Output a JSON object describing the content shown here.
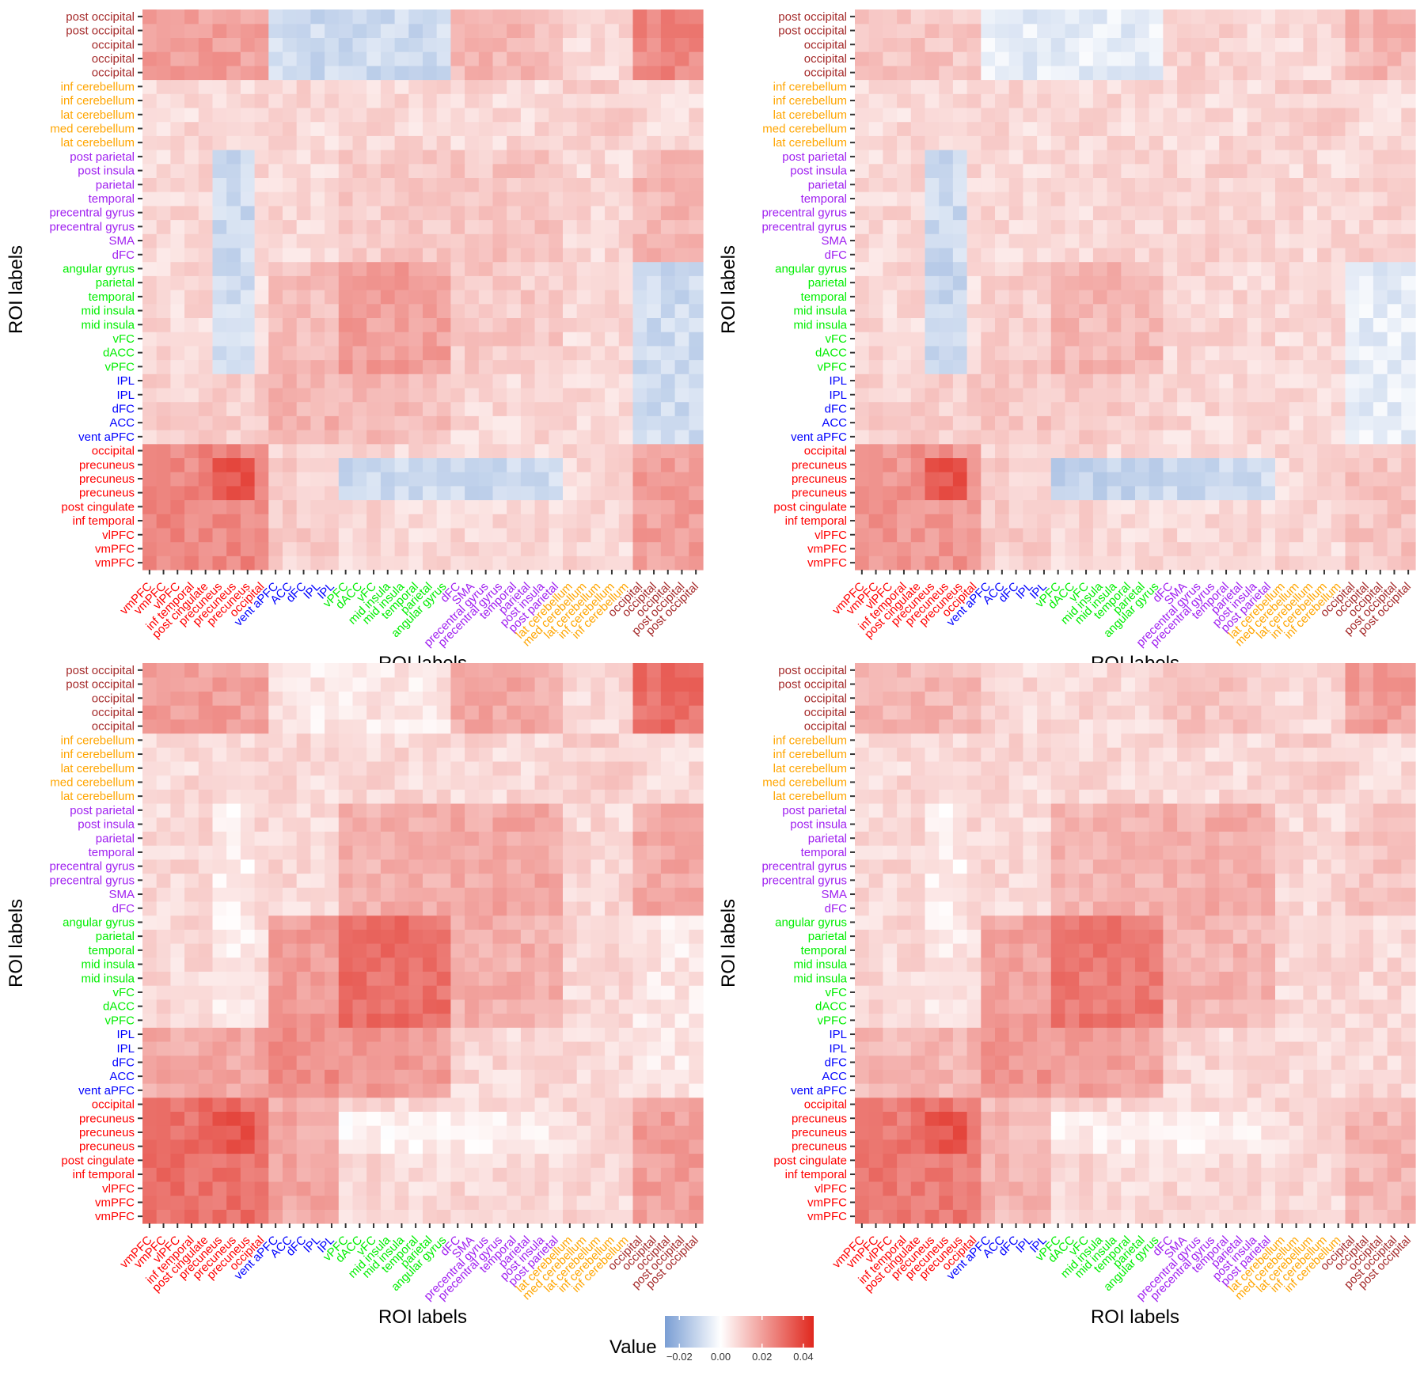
{
  "chart_data": [
    {
      "type": "heatmap",
      "panel": "top-left",
      "xlabel": "ROI labels",
      "ylabel": "ROI labels",
      "row_labels_bottom_to_top": [
        "vmPFC",
        "vmPFC",
        "vlPFC",
        "inf temporal",
        "post cingulate",
        "precuneus",
        "precuneus",
        "precuneus",
        "occipital",
        "vent aPFC",
        "ACC",
        "dFC",
        "IPL",
        "IPL",
        "vPFC",
        "dACC",
        "vFC",
        "mid insula",
        "mid insula",
        "temporal",
        "parietal",
        "angular gyrus",
        "dFC",
        "SMA",
        "precentral gyrus",
        "precentral gyrus",
        "temporal",
        "parietal",
        "post insula",
        "post parietal",
        "lat cerebellum",
        "med cerebellum",
        "lat cerebellum",
        "inf cerebellum",
        "inf cerebellum",
        "occipital",
        "occipital",
        "occipital",
        "post occipital",
        "post occipital"
      ],
      "col_labels_left_to_right": [
        "vmPFC",
        "vmPFC",
        "vlPFC",
        "inf temporal",
        "post cingulate",
        "precuneus",
        "precuneus",
        "precuneus",
        "occipital",
        "vent aPFC",
        "ACC",
        "dFC",
        "IPL",
        "IPL",
        "vPFC",
        "dACC",
        "vFC",
        "mid insula",
        "mid insula",
        "temporal",
        "parietal",
        "angular gyrus",
        "dFC",
        "SMA",
        "precentral gyrus",
        "precentral gyrus",
        "temporal",
        "parietal",
        "post insula",
        "post parietal",
        "lat cerebellum",
        "med cerebellum",
        "lat cerebellum",
        "inf cerebellum",
        "inf cerebellum",
        "occipital",
        "occipital",
        "occipital",
        "post occipital",
        "post occipital"
      ],
      "approx_block_values": {
        "DMN_DMN": 0.025,
        "occipital_occipital": 0.025,
        "DMN_occipital": 0.02,
        "salience_salience": 0.02,
        "DMN_frontoparietal": 0.01,
        "salience_occipital": -0.01,
        "salience_precuneus": -0.01,
        "somatomotor_precuneus": -0.01,
        "max_cell": 0.04
      }
    },
    {
      "type": "heatmap",
      "panel": "top-right",
      "xlabel": "ROI labels",
      "ylabel": "ROI labels",
      "approx_block_values": {
        "DMN_DMN": 0.022,
        "occipital_occipital": 0.015,
        "DMN_occipital": 0.012,
        "salience_salience": 0.015,
        "DMN_frontoparietal": 0.01,
        "salience_occipital": -0.005,
        "salience_precuneus": -0.012,
        "somatomotor_precuneus": -0.01,
        "max_cell": 0.04
      }
    },
    {
      "type": "heatmap",
      "panel": "bottom-left",
      "xlabel": "ROI labels",
      "ylabel": "ROI labels",
      "approx_block_values": {
        "DMN_DMN": 0.03,
        "occipital_occipital": 0.03,
        "DMN_occipital": 0.02,
        "salience_salience": 0.03,
        "DMN_frontoparietal": 0.018,
        "salience_occipital": 0.005,
        "salience_precuneus": 0.003,
        "somatomotor_precuneus": 0.004,
        "max_cell": 0.04
      }
    },
    {
      "type": "heatmap",
      "panel": "bottom-right",
      "xlabel": "ROI labels",
      "ylabel": "ROI labels",
      "approx_block_values": {
        "DMN_DMN": 0.028,
        "occipital_occipital": 0.02,
        "DMN_occipital": 0.015,
        "salience_salience": 0.028,
        "DMN_frontoparietal": 0.015,
        "salience_occipital": 0.008,
        "salience_precuneus": 0.004,
        "somatomotor_precuneus": 0.004,
        "max_cell": 0.04
      }
    }
  ],
  "legend": {
    "title": "Value",
    "ticks": [
      "−0.02",
      "0.00",
      "0.02",
      "0.04"
    ],
    "tick_values": [
      -0.02,
      0.0,
      0.02,
      0.04
    ],
    "range": [
      -0.027,
      0.045
    ]
  },
  "colors": {
    "low": "#7a9ed4",
    "mid": "#ffffff",
    "high": "#e0281e",
    "group_dmn": "#ff0000",
    "group_frontoparietal": "#0000ff",
    "group_salience": "#00ee00",
    "group_somatomotor": "#a020f0",
    "group_cerebellum": "#ffa500",
    "group_occipital": "#a52a2a"
  },
  "roi_groups": [
    "dmn",
    "dmn",
    "dmn",
    "dmn",
    "dmn",
    "dmn",
    "dmn",
    "dmn",
    "dmn",
    "frontoparietal",
    "frontoparietal",
    "frontoparietal",
    "frontoparietal",
    "frontoparietal",
    "salience",
    "salience",
    "salience",
    "salience",
    "salience",
    "salience",
    "salience",
    "salience",
    "somatomotor",
    "somatomotor",
    "somatomotor",
    "somatomotor",
    "somatomotor",
    "somatomotor",
    "somatomotor",
    "somatomotor",
    "cerebellum",
    "cerebellum",
    "cerebellum",
    "cerebellum",
    "cerebellum",
    "occipital",
    "occipital",
    "occipital",
    "occipital",
    "occipital"
  ]
}
